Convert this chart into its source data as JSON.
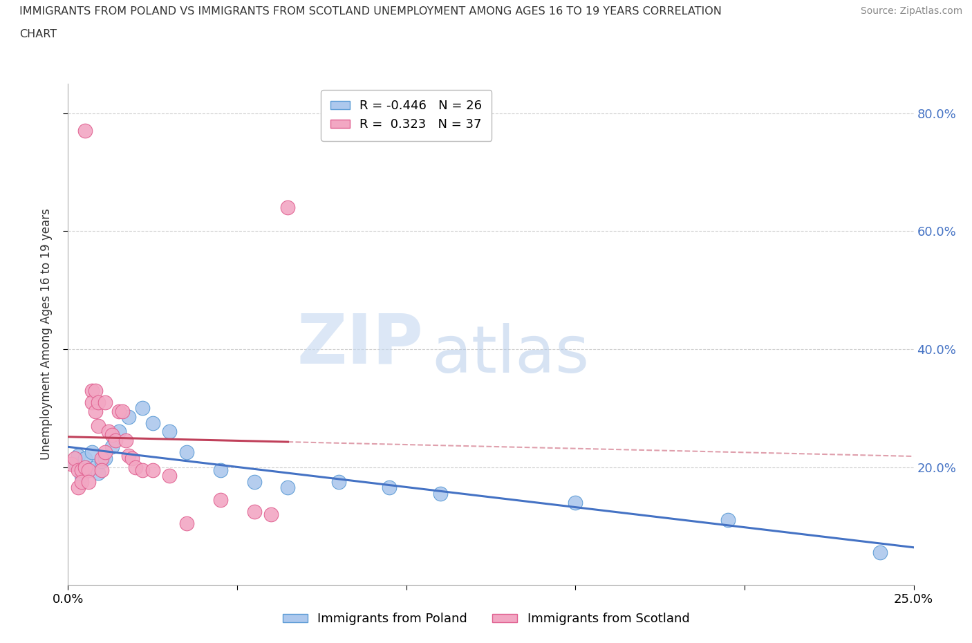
{
  "title_line1": "IMMIGRANTS FROM POLAND VS IMMIGRANTS FROM SCOTLAND UNEMPLOYMENT AMONG AGES 16 TO 19 YEARS CORRELATION",
  "title_line2": "CHART",
  "source": "Source: ZipAtlas.com",
  "ylabel": "Unemployment Among Ages 16 to 19 years",
  "xlim": [
    0.0,
    0.25
  ],
  "ylim": [
    0.0,
    0.85
  ],
  "xticks": [
    0.0,
    0.05,
    0.1,
    0.15,
    0.2,
    0.25
  ],
  "xticklabels": [
    "0.0%",
    "",
    "",
    "",
    "",
    "25.0%"
  ],
  "yticks_right": [
    0.2,
    0.4,
    0.6,
    0.8
  ],
  "poland_R": -0.446,
  "poland_N": 26,
  "scotland_R": 0.323,
  "scotland_N": 37,
  "poland_color": "#adc8ed",
  "poland_edge_color": "#5b9bd5",
  "poland_line_color": "#4472c4",
  "scotland_color": "#f2a7c3",
  "scotland_edge_color": "#e06090",
  "scotland_line_color": "#c0405a",
  "watermark_zip": "ZIP",
  "watermark_atlas": "atlas",
  "background_color": "#ffffff",
  "grid_color": "#cccccc",
  "poland_x": [
    0.002,
    0.003,
    0.004,
    0.005,
    0.006,
    0.007,
    0.008,
    0.009,
    0.01,
    0.011,
    0.013,
    0.015,
    0.018,
    0.022,
    0.025,
    0.03,
    0.035,
    0.045,
    0.055,
    0.065,
    0.08,
    0.095,
    0.11,
    0.15,
    0.195,
    0.24
  ],
  "poland_y": [
    0.205,
    0.22,
    0.185,
    0.215,
    0.195,
    0.225,
    0.2,
    0.19,
    0.21,
    0.215,
    0.235,
    0.26,
    0.285,
    0.3,
    0.275,
    0.26,
    0.225,
    0.195,
    0.175,
    0.165,
    0.175,
    0.165,
    0.155,
    0.14,
    0.11,
    0.055
  ],
  "scotland_x": [
    0.001,
    0.002,
    0.003,
    0.003,
    0.004,
    0.004,
    0.005,
    0.005,
    0.006,
    0.006,
    0.007,
    0.007,
    0.008,
    0.008,
    0.009,
    0.009,
    0.01,
    0.01,
    0.011,
    0.011,
    0.012,
    0.013,
    0.014,
    0.015,
    0.016,
    0.017,
    0.018,
    0.019,
    0.02,
    0.022,
    0.025,
    0.03,
    0.035,
    0.045,
    0.055,
    0.06,
    0.065
  ],
  "scotland_y": [
    0.205,
    0.215,
    0.195,
    0.165,
    0.195,
    0.175,
    0.77,
    0.2,
    0.195,
    0.175,
    0.33,
    0.31,
    0.33,
    0.295,
    0.31,
    0.27,
    0.215,
    0.195,
    0.31,
    0.225,
    0.26,
    0.255,
    0.245,
    0.295,
    0.295,
    0.245,
    0.22,
    0.215,
    0.2,
    0.195,
    0.195,
    0.185,
    0.105,
    0.145,
    0.125,
    0.12,
    0.64
  ]
}
